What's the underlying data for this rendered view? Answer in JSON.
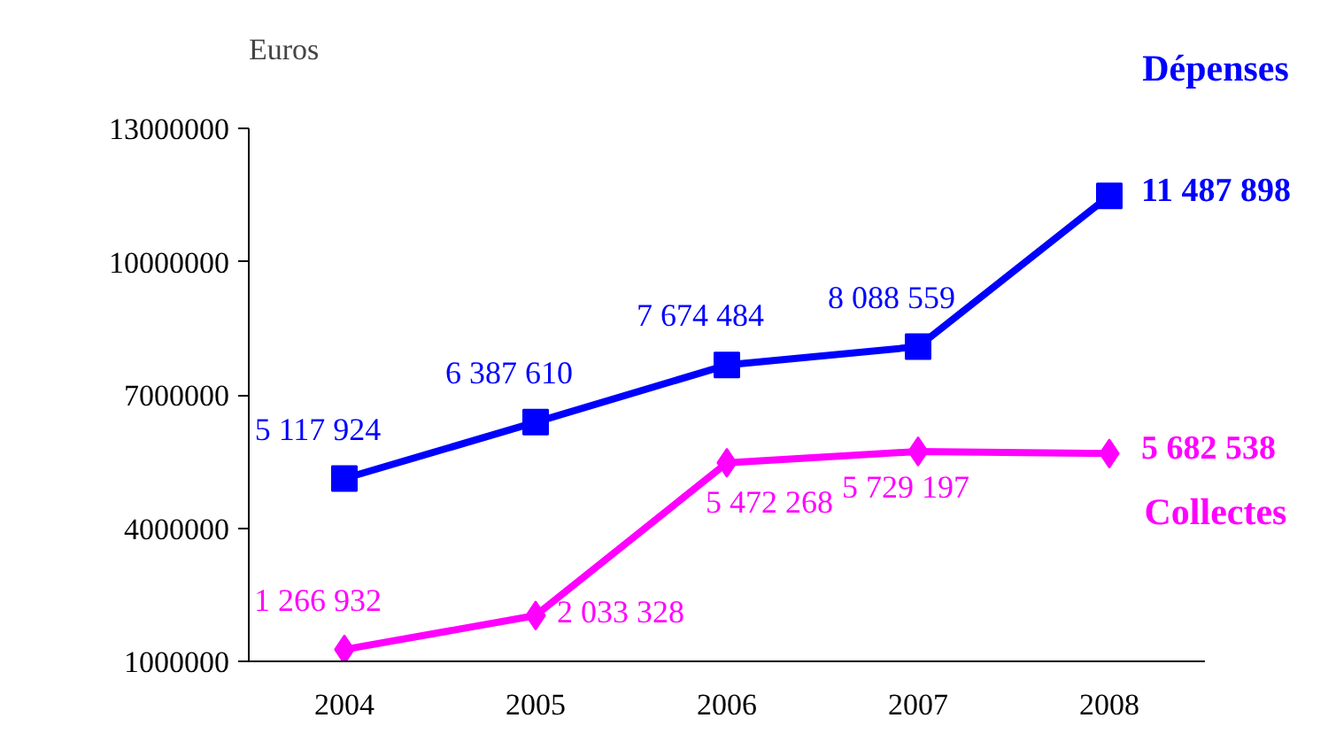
{
  "chart_data": {
    "type": "line",
    "ylabel": "Euros",
    "categories": [
      "2004",
      "2005",
      "2006",
      "2007",
      "2008"
    ],
    "ylim": [
      1000000,
      13000000
    ],
    "yticks": [
      1000000,
      4000000,
      7000000,
      10000000,
      13000000
    ],
    "grid": false,
    "series": [
      {
        "name": "Dépenses",
        "color": "#0000ff",
        "marker": "square",
        "values": [
          5117924,
          6387610,
          7674484,
          8088559,
          11487898
        ],
        "value_labels": [
          "5 117 924",
          "6 387 610",
          "7 674 484",
          "8 088 559",
          "11 487 898"
        ]
      },
      {
        "name": "Collectes",
        "color": "#ff00ff",
        "marker": "diamond",
        "values": [
          1266932,
          2033328,
          5472268,
          5729197,
          5682538
        ],
        "value_labels": [
          "1 266 932",
          "2 033 328",
          "5 472 268",
          "5 729 197",
          "5 682 538"
        ]
      }
    ]
  }
}
